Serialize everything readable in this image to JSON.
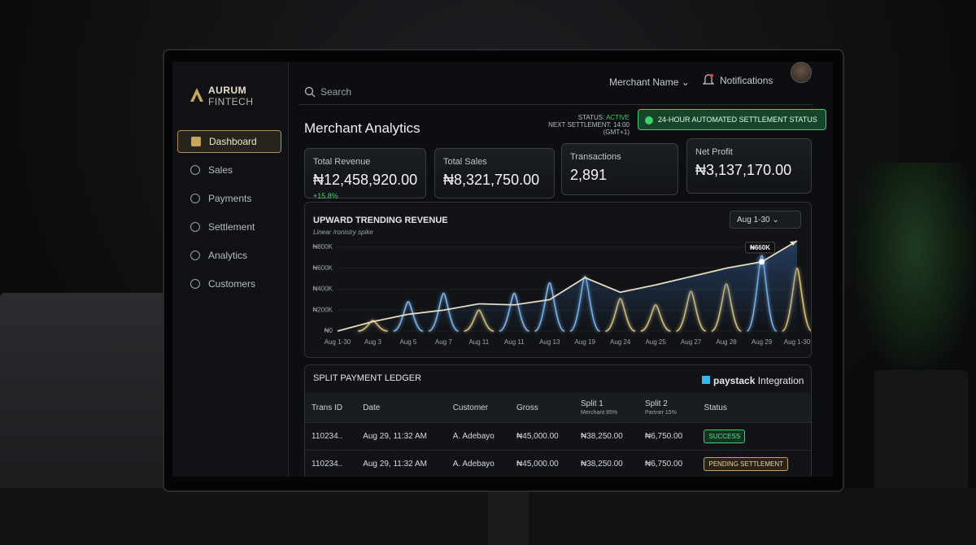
{
  "brand": {
    "name": "AURUM",
    "sub": "FINTECH"
  },
  "nav": [
    "Dashboard",
    "Sales",
    "Payments",
    "Settlement",
    "Analytics",
    "Customers"
  ],
  "search": "Search",
  "header": {
    "merchant": "Merchant Name",
    "notifications": "Notifications"
  },
  "page_title": "Merchant Analytics",
  "status": {
    "label": "STATUS:",
    "value": "ACTIVE",
    "next": "NEXT SETTLEMENT: 14:00 (GMT+1)",
    "badge": "24-HOUR AUTOMATED SETTLEMENT STATUS"
  },
  "kpis": [
    {
      "label": "Total Revenue",
      "value": "₦12,458,920.00",
      "change": "+15.8%"
    },
    {
      "label": "Total Sales",
      "value": "₦8,321,750.00"
    },
    {
      "label": "Transactions",
      "value": "2,891"
    },
    {
      "label": "Net Profit",
      "value": "₦3,137,170.00"
    }
  ],
  "chart_data": {
    "type": "line",
    "title": "UPWARD TRENDING REVENUE",
    "subtitle": "Linear /ronistry spike",
    "range": "Aug 1-30",
    "categories": [
      "Aug 1-30",
      "Aug 3",
      "Aug 5",
      "Aug 7",
      "Aug 11",
      "Aug 11",
      "Aug 13",
      "Aug 19",
      "Aug 24",
      "Aug 25",
      "Aug 27",
      "Aug 28",
      "Aug 29",
      "Aug 1-30"
    ],
    "ylim": [
      0,
      900000
    ],
    "yticks": [
      {
        "value": 0,
        "label": "₦0"
      },
      {
        "value": 200000,
        "label": "₦200K"
      },
      {
        "value": 400000,
        "label": "₦400K"
      },
      {
        "value": 600000,
        "label": "₦600K"
      },
      {
        "value": 800000,
        "label": "₦800K"
      }
    ],
    "grid": true,
    "series": [
      {
        "color": "#e8dcc0",
        "values": [
          0,
          90000,
          160000,
          200000,
          260000,
          250000,
          300000,
          510000,
          370000,
          440000,
          520000,
          600000,
          660000,
          860000
        ],
        "value_labels": [
          null,
          null,
          null,
          null,
          null,
          null,
          null,
          null,
          null,
          null,
          null,
          null,
          "₦660K",
          null
        ]
      },
      {
        "color": "#7fb8f0",
        "values": [
          null,
          null,
          280000,
          360000,
          null,
          360000,
          460000,
          520000,
          null,
          null,
          null,
          null,
          720000,
          null
        ]
      },
      {
        "color": "#d9c07a",
        "values": [
          null,
          100000,
          null,
          null,
          200000,
          null,
          null,
          null,
          310000,
          250000,
          380000,
          450000,
          null,
          600000
        ]
      }
    ]
  },
  "ledger": {
    "title": "SPLIT PAYMENT LEDGER",
    "brand": "paystack",
    "integration": "Integration",
    "columns": [
      {
        "label": "Trans ID"
      },
      {
        "label": "Date"
      },
      {
        "label": "Customer"
      },
      {
        "label": "Gross"
      },
      {
        "label": "Split 1",
        "sub": "Merchant 85%"
      },
      {
        "label": "Split 2",
        "sub": "Partner 15%"
      },
      {
        "label": "Status"
      }
    ],
    "rows": [
      [
        "110234..",
        "Aug 29, 11:32 AM",
        "A. Adebayo",
        "₦45,000.00",
        "₦38,250.00",
        "₦6,750.00",
        "SUCCESS"
      ],
      [
        "110234..",
        "Aug 29, 11:32 AM",
        "A. Adebayo",
        "₦45,000.00",
        "₦38,250.00",
        "₦6,750.00",
        "PENDING SETTLEMENT"
      ]
    ]
  }
}
